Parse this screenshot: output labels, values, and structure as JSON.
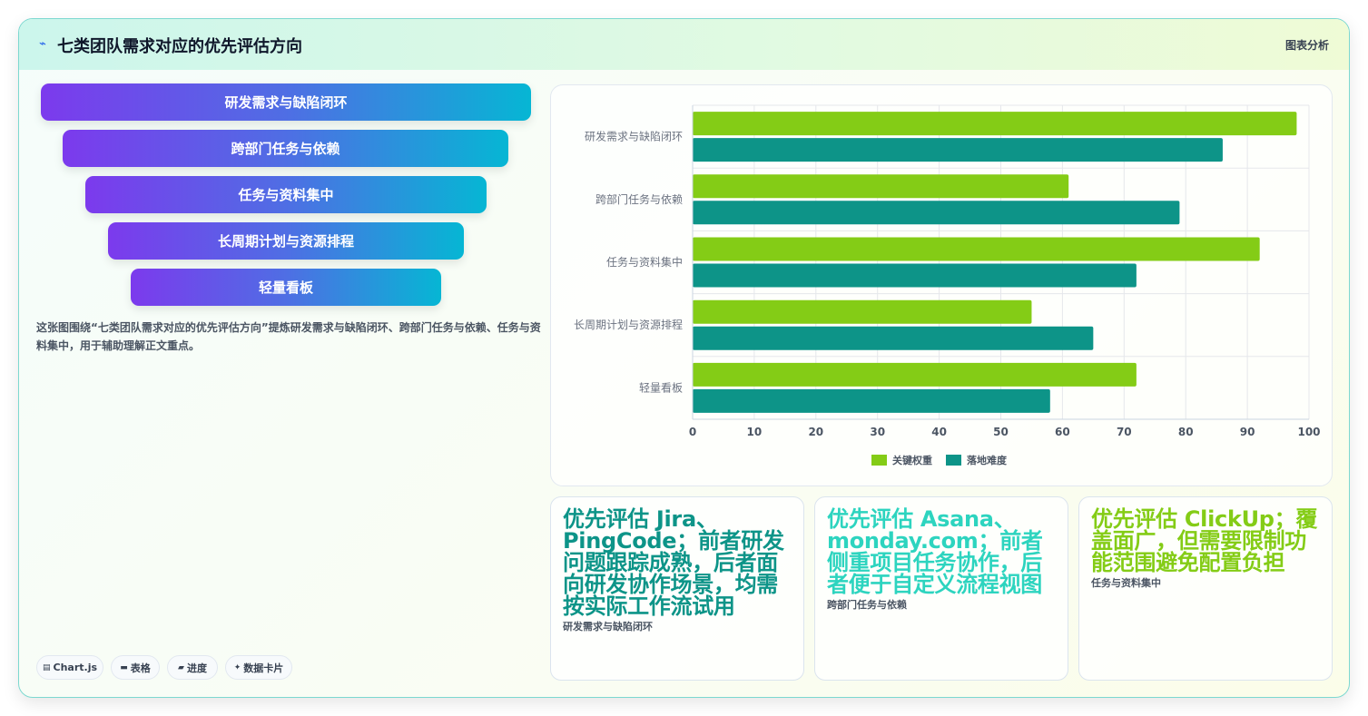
{
  "header": {
    "title": "七类团队需求对应的优先评估方向",
    "right_label": "图表分析",
    "logo_icon": "lightning-icon"
  },
  "funnel": {
    "items": [
      {
        "label": "研发需求与缺陷闭环"
      },
      {
        "label": "跨部门任务与依赖"
      },
      {
        "label": "任务与资料集中"
      },
      {
        "label": "长周期计划与资源排程"
      },
      {
        "label": "轻量看板"
      }
    ]
  },
  "description": "这张图围绕“七类团队需求对应的优先评估方向”提炼研发需求与缺陷闭环、跨部门任务与依赖、任务与资料集中，用于辅助理解正文重点。",
  "chips": [
    {
      "icon": "chart-icon",
      "glyph": "▤",
      "label": "Chart.js"
    },
    {
      "icon": "table-icon",
      "glyph": "▬",
      "label": "表格"
    },
    {
      "icon": "progress-icon",
      "glyph": "▰",
      "label": "进度"
    },
    {
      "icon": "sparkle-icon",
      "glyph": "✦",
      "label": "数据卡片"
    }
  ],
  "chart_data": {
    "type": "bar",
    "orientation": "horizontal",
    "categories": [
      "研发需求与缺陷闭环",
      "跨部门任务与依赖",
      "任务与资料集中",
      "长周期计划与资源排程",
      "轻量看板"
    ],
    "series": [
      {
        "name": "关键权重",
        "color": "#84cc16",
        "values": [
          98,
          61,
          92,
          55,
          72
        ]
      },
      {
        "name": "落地难度",
        "color": "#0d9488",
        "values": [
          86,
          79,
          72,
          65,
          58
        ]
      }
    ],
    "xlim": [
      0,
      100
    ],
    "xticks": [
      0,
      10,
      20,
      30,
      40,
      50,
      60,
      70,
      80,
      90,
      100
    ],
    "grid": true,
    "legend": "bottom-center"
  },
  "cards": [
    {
      "headline": "优先评估 Jira、PingCode；前者研发问题跟踪成熟，后者面向研发协作场景，均需按实际工作流试用",
      "caption": "研发需求与缺陷闭环",
      "color": "#0d9488"
    },
    {
      "headline": "优先评估 Asana、monday.com；前者侧重项目任务协作，后者便于自定义流程视图",
      "caption": "跨部门任务与依赖",
      "color": "#2dd4bf"
    },
    {
      "headline": "优先评估 ClickUp；覆盖面广，但需要限制功能范围避免配置负担",
      "caption": "任务与资料集中",
      "color": "#84cc16"
    }
  ]
}
